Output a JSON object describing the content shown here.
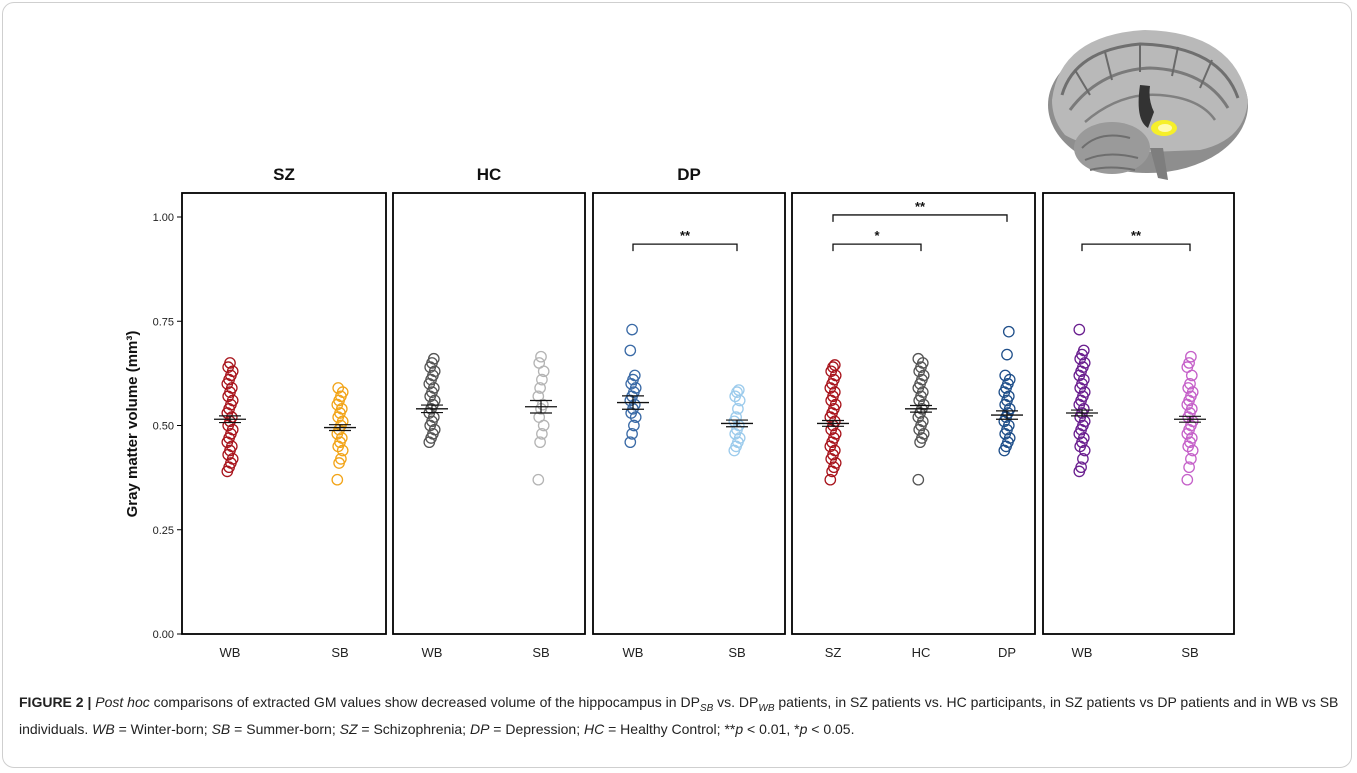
{
  "chart_data": {
    "type": "scatter",
    "ylabel": "Gray matter volume (mm³)",
    "ylim": [
      0,
      1.0
    ],
    "yticks": [
      "0.00",
      "0.25",
      "0.50",
      "0.75",
      "1.00"
    ],
    "ytick_values": [
      0,
      0.25,
      0.5,
      0.75,
      1.0
    ],
    "panels": [
      {
        "title": "SZ",
        "categories": [
          "WB",
          "SB"
        ],
        "series": [
          {
            "color": "#a8141c",
            "mean": 0.515,
            "err": 0.008,
            "values": [
              0.39,
              0.4,
              0.41,
              0.42,
              0.43,
              0.44,
              0.45,
              0.46,
              0.47,
              0.48,
              0.49,
              0.5,
              0.51,
              0.52,
              0.53,
              0.54,
              0.55,
              0.56,
              0.57,
              0.58,
              0.59,
              0.6,
              0.61,
              0.62,
              0.63,
              0.64,
              0.65
            ]
          },
          {
            "color": "#f2a418",
            "mean": 0.495,
            "err": 0.007,
            "values": [
              0.37,
              0.41,
              0.42,
              0.44,
              0.45,
              0.46,
              0.47,
              0.48,
              0.49,
              0.5,
              0.51,
              0.52,
              0.53,
              0.54,
              0.55,
              0.56,
              0.57,
              0.58,
              0.59
            ]
          }
        ],
        "brackets": []
      },
      {
        "title": "HC",
        "categories": [
          "WB",
          "SB"
        ],
        "series": [
          {
            "color": "#555555",
            "mean": 0.54,
            "err": 0.009,
            "values": [
              0.46,
              0.47,
              0.48,
              0.49,
              0.5,
              0.51,
              0.52,
              0.53,
              0.54,
              0.55,
              0.56,
              0.57,
              0.58,
              0.59,
              0.6,
              0.61,
              0.62,
              0.63,
              0.64,
              0.65,
              0.66
            ]
          },
          {
            "color": "#b4b4b4",
            "mean": 0.545,
            "err": 0.015,
            "values": [
              0.37,
              0.46,
              0.48,
              0.5,
              0.52,
              0.54,
              0.55,
              0.57,
              0.59,
              0.61,
              0.63,
              0.65,
              0.665
            ]
          }
        ],
        "brackets": []
      },
      {
        "title": "DP",
        "categories": [
          "WB",
          "SB"
        ],
        "series": [
          {
            "color": "#3a6aa6",
            "mean": 0.555,
            "err": 0.016,
            "values": [
              0.46,
              0.48,
              0.5,
              0.52,
              0.53,
              0.54,
              0.55,
              0.56,
              0.57,
              0.58,
              0.59,
              0.6,
              0.61,
              0.62,
              0.68,
              0.73
            ]
          },
          {
            "color": "#9ccbec",
            "mean": 0.505,
            "err": 0.008,
            "values": [
              0.44,
              0.45,
              0.46,
              0.47,
              0.48,
              0.49,
              0.5,
              0.51,
              0.52,
              0.54,
              0.56,
              0.57,
              0.58,
              0.585
            ]
          }
        ],
        "brackets": [
          {
            "from": 0,
            "to": 1,
            "label": "**",
            "y": 0.935
          }
        ]
      },
      {
        "title": "",
        "categories": [
          "SZ",
          "HC",
          "DP"
        ],
        "series": [
          {
            "color": "#a8141c",
            "mean": 0.505,
            "err": 0.007,
            "values": [
              0.37,
              0.39,
              0.4,
              0.41,
              0.42,
              0.43,
              0.44,
              0.45,
              0.46,
              0.47,
              0.48,
              0.49,
              0.5,
              0.51,
              0.52,
              0.53,
              0.54,
              0.55,
              0.56,
              0.57,
              0.58,
              0.59,
              0.6,
              0.61,
              0.62,
              0.63,
              0.64,
              0.645
            ]
          },
          {
            "color": "#555555",
            "mean": 0.54,
            "err": 0.008,
            "values": [
              0.37,
              0.46,
              0.47,
              0.48,
              0.49,
              0.5,
              0.51,
              0.52,
              0.53,
              0.54,
              0.55,
              0.56,
              0.57,
              0.58,
              0.59,
              0.6,
              0.61,
              0.62,
              0.63,
              0.64,
              0.65,
              0.66
            ]
          },
          {
            "color": "#1f4f8a",
            "mean": 0.525,
            "err": 0.01,
            "values": [
              0.44,
              0.45,
              0.46,
              0.47,
              0.48,
              0.49,
              0.5,
              0.51,
              0.52,
              0.53,
              0.54,
              0.55,
              0.56,
              0.57,
              0.58,
              0.59,
              0.6,
              0.61,
              0.62,
              0.67,
              0.725
            ]
          }
        ],
        "brackets": [
          {
            "from": 0,
            "to": 1,
            "label": "*",
            "y": 0.935
          },
          {
            "from": 0,
            "to": 2,
            "label": "**",
            "y": 1.005
          }
        ]
      },
      {
        "title": "",
        "categories": [
          "WB",
          "SB"
        ],
        "series": [
          {
            "color": "#6a1f8f",
            "mean": 0.53,
            "err": 0.007,
            "values": [
              0.39,
              0.4,
              0.42,
              0.44,
              0.45,
              0.46,
              0.47,
              0.48,
              0.49,
              0.5,
              0.51,
              0.52,
              0.53,
              0.54,
              0.55,
              0.56,
              0.57,
              0.58,
              0.59,
              0.6,
              0.61,
              0.62,
              0.63,
              0.64,
              0.65,
              0.66,
              0.67,
              0.68,
              0.73
            ]
          },
          {
            "color": "#c561c9",
            "mean": 0.515,
            "err": 0.007,
            "values": [
              0.37,
              0.4,
              0.42,
              0.44,
              0.45,
              0.46,
              0.47,
              0.48,
              0.49,
              0.5,
              0.51,
              0.52,
              0.53,
              0.54,
              0.55,
              0.56,
              0.57,
              0.58,
              0.59,
              0.6,
              0.62,
              0.64,
              0.65,
              0.665
            ]
          }
        ],
        "brackets": [
          {
            "from": 0,
            "to": 1,
            "label": "**",
            "y": 0.935
          }
        ]
      }
    ]
  },
  "caption": {
    "figure_label": "FIGURE 2 |",
    "p1_italic": "Post hoc",
    "p2": " comparisons of extracted GM values show decreased volume of the hippocampus in DP",
    "sub_sb": "SB",
    "p3": " vs. DP",
    "sub_wb": "WB",
    "p4": " patients, in SZ patients vs. HC participants, in SZ patients vs DP patients and in WB vs SB individuals. ",
    "d1k": "WB",
    "d1v": " = Winter-born; ",
    "d2k": "SB",
    "d2v": " = Summer-born; ",
    "d3k": "SZ",
    "d3v": " = Schizophrenia; ",
    "d4k": "DP",
    "d4v": " = Depression; ",
    "d5k": "HC",
    "d5v": " = Healthy Control; **",
    "p_a": "p",
    "lt1": " < 0.01, *",
    "p_b": "p",
    "lt2": " < 0.05."
  }
}
